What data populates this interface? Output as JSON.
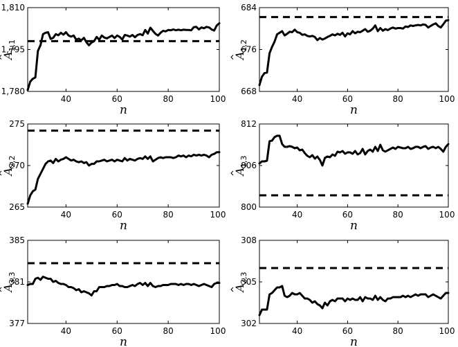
{
  "chart_data": [
    {
      "type": "line",
      "ylabel_base": "A",
      "ylabel_sub": "1,1",
      "xlabel": "n",
      "xlim": [
        25,
        100
      ],
      "ylim": [
        1780,
        1810
      ],
      "xticks": [
        40,
        60,
        80,
        100
      ],
      "xtick_labels": [
        "40",
        "60",
        "80",
        "100"
      ],
      "yticks": [
        1780,
        1795,
        1810
      ],
      "ytick_labels": [
        "1,780",
        "1,795",
        "1,810"
      ],
      "reference": 1798,
      "x": [
        25,
        26,
        27,
        28,
        29,
        30,
        31,
        32,
        33,
        34,
        35,
        36,
        37,
        38,
        39,
        40,
        41,
        42,
        43,
        44,
        45,
        46,
        47,
        48,
        49,
        50,
        51,
        52,
        53,
        54,
        55,
        56,
        57,
        58,
        59,
        60,
        61,
        62,
        63,
        64,
        65,
        66,
        67,
        68,
        69,
        70,
        71,
        72,
        73,
        74,
        75,
        76,
        77,
        78,
        79,
        80,
        81,
        82,
        83,
        84,
        85,
        86,
        87,
        88,
        89,
        90,
        91,
        92,
        93,
        94,
        95,
        96,
        97,
        98,
        99,
        100
      ],
      "y": [
        1780.5,
        1783.5,
        1784.5,
        1785,
        1794.5,
        1796.5,
        1800.5,
        1801,
        1801.2,
        1798.8,
        1799.2,
        1800.5,
        1800.1,
        1801,
        1800.3,
        1801.2,
        1800,
        1799.6,
        1800,
        1798.5,
        1798.9,
        1798.3,
        1799.2,
        1797.6,
        1796.5,
        1797.5,
        1798,
        1799.5,
        1798.5,
        1800,
        1799.3,
        1799,
        1799.5,
        1800,
        1799.1,
        1800,
        1799.5,
        1798.6,
        1800.2,
        1800,
        1799.6,
        1800.2,
        1799.4,
        1800.2,
        1800.5,
        1800.1,
        1802,
        1800.7,
        1802.8,
        1801.7,
        1800.6,
        1800,
        1801,
        1801.7,
        1801.5,
        1802,
        1801.9,
        1802.2,
        1801.9,
        1802.1,
        1801.9,
        1802.1,
        1802,
        1802,
        1801.9,
        1803,
        1803.1,
        1802.2,
        1802.9,
        1802.6,
        1803.1,
        1802.9,
        1802.2,
        1801.8,
        1803.6,
        1804.4
      ]
    },
    {
      "type": "line",
      "ylabel_base": "A",
      "ylabel_sub": "1,2",
      "xlabel": "n",
      "xlim": [
        25,
        100
      ],
      "ylim": [
        668,
        684
      ],
      "xticks": [
        40,
        60,
        80,
        100
      ],
      "xtick_labels": [
        "40",
        "60",
        "80",
        "100"
      ],
      "yticks": [
        668,
        676,
        684
      ],
      "ytick_labels": [
        "668",
        "676",
        "684"
      ],
      "reference": 682.2,
      "x": [
        25,
        26,
        27,
        28,
        29,
        30,
        31,
        32,
        33,
        34,
        35,
        36,
        37,
        38,
        39,
        40,
        41,
        42,
        43,
        44,
        45,
        46,
        47,
        48,
        49,
        50,
        51,
        52,
        53,
        54,
        55,
        56,
        57,
        58,
        59,
        60,
        61,
        62,
        63,
        64,
        65,
        66,
        67,
        68,
        69,
        70,
        71,
        72,
        73,
        74,
        75,
        76,
        77,
        78,
        79,
        80,
        81,
        82,
        83,
        84,
        85,
        86,
        87,
        88,
        89,
        90,
        91,
        92,
        93,
        94,
        95,
        96,
        97,
        98,
        99,
        100
      ],
      "y": [
        669.2,
        670.8,
        671.5,
        671.6,
        675.3,
        676.5,
        677.5,
        678.9,
        679.2,
        679.5,
        678.7,
        679,
        679.4,
        679.3,
        679.8,
        679.3,
        679.2,
        678.8,
        678.9,
        678.6,
        678.5,
        678.6,
        678.4,
        677.8,
        678.2,
        677.9,
        678.1,
        678.4,
        678.6,
        678.9,
        678.7,
        679,
        678.8,
        679.2,
        678.5,
        679.1,
        678.9,
        679.5,
        679.1,
        679.4,
        679.3,
        679.6,
        679.9,
        679.4,
        679.6,
        680,
        680.6,
        679.5,
        680.1,
        679.6,
        679.9,
        679.7,
        680,
        680.2,
        680,
        680.1,
        680.1,
        680,
        680.4,
        680.3,
        680.6,
        680.5,
        680.6,
        680.7,
        680.6,
        680.8,
        680.7,
        680.2,
        680.5,
        680.8,
        681,
        680.5,
        680.2,
        680.8,
        681.5,
        681.6
      ]
    },
    {
      "type": "line",
      "ylabel_base": "A",
      "ylabel_sub": "2,2",
      "xlabel": "n",
      "xlim": [
        25,
        100
      ],
      "ylim": [
        265,
        275
      ],
      "xticks": [
        40,
        60,
        80,
        100
      ],
      "xtick_labels": [
        "40",
        "60",
        "80",
        "100"
      ],
      "yticks": [
        265,
        270,
        275
      ],
      "ytick_labels": [
        "265",
        "270",
        "275"
      ],
      "reference": 274.2,
      "x": [
        25,
        26,
        27,
        28,
        29,
        30,
        31,
        32,
        33,
        34,
        35,
        36,
        37,
        38,
        39,
        40,
        41,
        42,
        43,
        44,
        45,
        46,
        47,
        48,
        49,
        50,
        51,
        52,
        53,
        54,
        55,
        56,
        57,
        58,
        59,
        60,
        61,
        62,
        63,
        64,
        65,
        66,
        67,
        68,
        69,
        70,
        71,
        72,
        73,
        74,
        75,
        76,
        77,
        78,
        79,
        80,
        81,
        82,
        83,
        84,
        85,
        86,
        87,
        88,
        89,
        90,
        91,
        92,
        93,
        94,
        95,
        96,
        97,
        98,
        99,
        100
      ],
      "y": [
        265.4,
        266.4,
        266.9,
        267.1,
        268.4,
        269,
        269.6,
        270.2,
        270.5,
        270.6,
        270.3,
        270.8,
        270.5,
        270.7,
        270.8,
        271,
        270.8,
        270.6,
        270.7,
        270.5,
        270.4,
        270.5,
        270.3,
        270.4,
        270,
        270.2,
        270.2,
        270.5,
        270.5,
        270.6,
        270.7,
        270.5,
        270.6,
        270.7,
        270.5,
        270.7,
        270.6,
        270.5,
        270.9,
        270.6,
        270.8,
        270.7,
        270.6,
        270.8,
        270.9,
        270.8,
        271.1,
        270.8,
        271.1,
        270.5,
        270.7,
        270.9,
        271,
        270.9,
        271,
        271,
        271,
        270.9,
        271,
        271.2,
        271.1,
        271.2,
        271,
        271.2,
        271.1,
        271.3,
        271.2,
        271.3,
        271.2,
        271.3,
        271.2,
        271,
        271.3,
        271.4,
        271.6,
        271.6
      ]
    },
    {
      "type": "line",
      "ylabel_base": "A",
      "ylabel_sub": "1,3",
      "xlabel": "n",
      "xlim": [
        25,
        100
      ],
      "ylim": [
        800,
        812
      ],
      "xticks": [
        40,
        60,
        80,
        100
      ],
      "xtick_labels": [
        "40",
        "60",
        "80",
        "100"
      ],
      "yticks": [
        800,
        806,
        812
      ],
      "ytick_labels": [
        "800",
        "806",
        "812"
      ],
      "reference": 801.7,
      "x": [
        25,
        26,
        27,
        28,
        29,
        30,
        31,
        32,
        33,
        34,
        35,
        36,
        37,
        38,
        39,
        40,
        41,
        42,
        43,
        44,
        45,
        46,
        47,
        48,
        49,
        50,
        51,
        52,
        53,
        54,
        55,
        56,
        57,
        58,
        59,
        60,
        61,
        62,
        63,
        64,
        65,
        66,
        67,
        68,
        69,
        70,
        71,
        72,
        73,
        74,
        75,
        76,
        77,
        78,
        79,
        80,
        81,
        82,
        83,
        84,
        85,
        86,
        87,
        88,
        89,
        90,
        91,
        92,
        93,
        94,
        95,
        96,
        97,
        98,
        99,
        100
      ],
      "y": [
        806.3,
        806.6,
        806.6,
        806.7,
        809.5,
        809.6,
        810.1,
        810.3,
        810.3,
        809.1,
        808.7,
        808.7,
        808.8,
        808.7,
        808.5,
        808.6,
        808.2,
        808.3,
        807.8,
        807.4,
        807.2,
        807.5,
        807,
        807.3,
        806.8,
        806,
        807.1,
        807.3,
        807.2,
        807.6,
        807.4,
        808,
        807.9,
        808.1,
        807.7,
        807.9,
        807.9,
        807.7,
        808.1,
        807.6,
        807.8,
        808.4,
        807.6,
        808.1,
        808.3,
        808,
        808.7,
        808.1,
        809,
        808.2,
        808,
        808.2,
        808.4,
        808.6,
        808.4,
        808.7,
        808.6,
        808.5,
        808.5,
        808.7,
        808.4,
        808.5,
        808.7,
        808.7,
        808.5,
        808.7,
        808.8,
        808.4,
        808.6,
        808.7,
        808.5,
        808.7,
        808.4,
        808,
        808.7,
        809.1
      ]
    },
    {
      "type": "line",
      "ylabel_base": "A",
      "ylabel_sub": "3,3",
      "xlabel": "n",
      "xlim": [
        25,
        100
      ],
      "ylim": [
        377,
        385
      ],
      "xticks": [
        40,
        60,
        80,
        100
      ],
      "xtick_labels": [
        "40",
        "60",
        "80",
        "100"
      ],
      "yticks": [
        377,
        381,
        385
      ],
      "ytick_labels": [
        "377",
        "381",
        "385"
      ],
      "reference": 382.8,
      "x": [
        25,
        26,
        27,
        28,
        29,
        30,
        31,
        32,
        33,
        34,
        35,
        36,
        37,
        38,
        39,
        40,
        41,
        42,
        43,
        44,
        45,
        46,
        47,
        48,
        49,
        50,
        51,
        52,
        53,
        54,
        55,
        56,
        57,
        58,
        59,
        60,
        61,
        62,
        63,
        64,
        65,
        66,
        67,
        68,
        69,
        70,
        71,
        72,
        73,
        74,
        75,
        76,
        77,
        78,
        79,
        80,
        81,
        82,
        83,
        84,
        85,
        86,
        87,
        88,
        89,
        90,
        91,
        92,
        93,
        94,
        95,
        96,
        97,
        98,
        99,
        100
      ],
      "y": [
        380.7,
        380.8,
        380.8,
        381.3,
        381.4,
        381.2,
        381.5,
        381.4,
        381.3,
        381.3,
        381,
        381.1,
        380.9,
        380.8,
        380.8,
        380.7,
        380.5,
        380.5,
        380.4,
        380.2,
        380.3,
        380,
        380.1,
        380,
        379.9,
        379.7,
        380.1,
        380.1,
        380.5,
        380.5,
        380.5,
        380.6,
        380.6,
        380.7,
        380.7,
        380.8,
        380.6,
        380.6,
        380.5,
        380.5,
        380.6,
        380.7,
        380.6,
        380.8,
        380.9,
        380.7,
        380.9,
        380.6,
        380.9,
        380.6,
        380.5,
        380.6,
        380.6,
        380.7,
        380.7,
        380.7,
        380.8,
        380.8,
        380.8,
        380.7,
        380.8,
        380.7,
        380.8,
        380.8,
        380.7,
        380.8,
        380.7,
        380.6,
        380.7,
        380.8,
        380.7,
        380.6,
        380.5,
        380.8,
        380.9,
        380.9
      ]
    },
    {
      "type": "line",
      "ylabel_base": "A",
      "ylabel_sub": "2,3",
      "xlabel": "n",
      "xlim": [
        25,
        100
      ],
      "ylim": [
        302,
        308
      ],
      "xticks": [
        40,
        60,
        80,
        100
      ],
      "xtick_labels": [
        "40",
        "60",
        "80",
        "100"
      ],
      "yticks": [
        302,
        305,
        308
      ],
      "ytick_labels": [
        "302",
        "305",
        "308"
      ],
      "reference": 306,
      "x": [
        25,
        26,
        27,
        28,
        29,
        30,
        31,
        32,
        33,
        34,
        35,
        36,
        37,
        38,
        39,
        40,
        41,
        42,
        43,
        44,
        45,
        46,
        47,
        48,
        49,
        50,
        51,
        52,
        53,
        54,
        55,
        56,
        57,
        58,
        59,
        60,
        61,
        62,
        63,
        64,
        65,
        66,
        67,
        68,
        69,
        70,
        71,
        72,
        73,
        74,
        75,
        76,
        77,
        78,
        79,
        80,
        81,
        82,
        83,
        84,
        85,
        86,
        87,
        88,
        89,
        90,
        91,
        92,
        93,
        94,
        95,
        96,
        97,
        98,
        99,
        100
      ],
      "y": [
        302.6,
        303,
        303,
        303,
        304.1,
        304.2,
        304.4,
        304.6,
        304.6,
        304.7,
        304,
        303.9,
        304,
        304.2,
        304.1,
        304.1,
        304.2,
        304,
        303.8,
        303.8,
        303.7,
        303.5,
        303.6,
        303.4,
        303.3,
        303.1,
        303.5,
        303.3,
        303.6,
        303.7,
        303.6,
        303.8,
        303.8,
        303.8,
        303.6,
        303.8,
        303.7,
        303.8,
        303.7,
        303.7,
        303.9,
        303.6,
        303.9,
        303.8,
        303.8,
        303.7,
        304,
        303.7,
        303.9,
        303.7,
        303.6,
        303.8,
        303.8,
        303.9,
        303.9,
        303.9,
        303.9,
        304,
        303.9,
        304,
        303.9,
        304,
        304.1,
        304,
        304.1,
        304.1,
        304.1,
        303.9,
        304,
        304.1,
        304,
        303.9,
        303.8,
        304,
        304.2,
        304.2
      ]
    }
  ]
}
